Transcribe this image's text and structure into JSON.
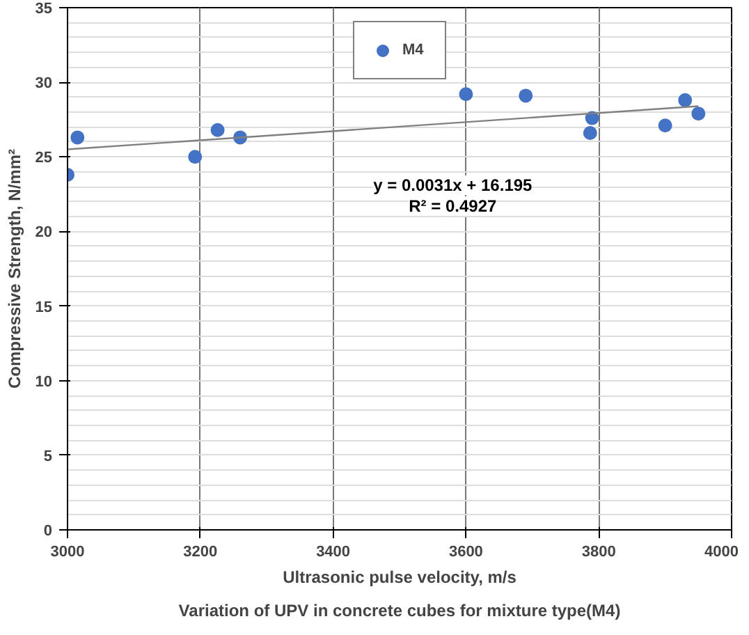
{
  "chart_data": {
    "type": "scatter",
    "title": "Variation of UPV in concrete cubes for mixture type(M4)",
    "xlabel": "Ultrasonic pulse velocity, m/s",
    "ylabel": "Compressive Strength, N/mm²",
    "xlim": [
      3000,
      4000
    ],
    "xticks": [
      3000,
      3200,
      3400,
      3600,
      3800,
      4000
    ],
    "ylim": [
      0,
      35
    ],
    "yticks": [
      0,
      5,
      10,
      15,
      20,
      25,
      30,
      35
    ],
    "grid": true,
    "legend": "top",
    "annotations": [
      "y = 0.0031x + 16.195\nR² = 0.4927"
    ],
    "series": [
      {
        "name": "M4",
        "color": "#4472c4",
        "marker": "circle",
        "x": [
          3000,
          3015,
          3192,
          3226,
          3260,
          3600,
          3690,
          3790,
          3787,
          3900,
          3930,
          3950
        ],
        "values": [
          23.8,
          26.3,
          25.0,
          26.8,
          26.3,
          29.2,
          29.1,
          27.6,
          26.6,
          27.1,
          28.8,
          27.9
        ]
      },
      {
        "type": "line",
        "color": "#808080",
        "x": [
          3000,
          3950
        ],
        "values": [
          25.5,
          28.4
        ],
        "marker": "none",
        "line_style": "solid"
      }
    ]
  }
}
